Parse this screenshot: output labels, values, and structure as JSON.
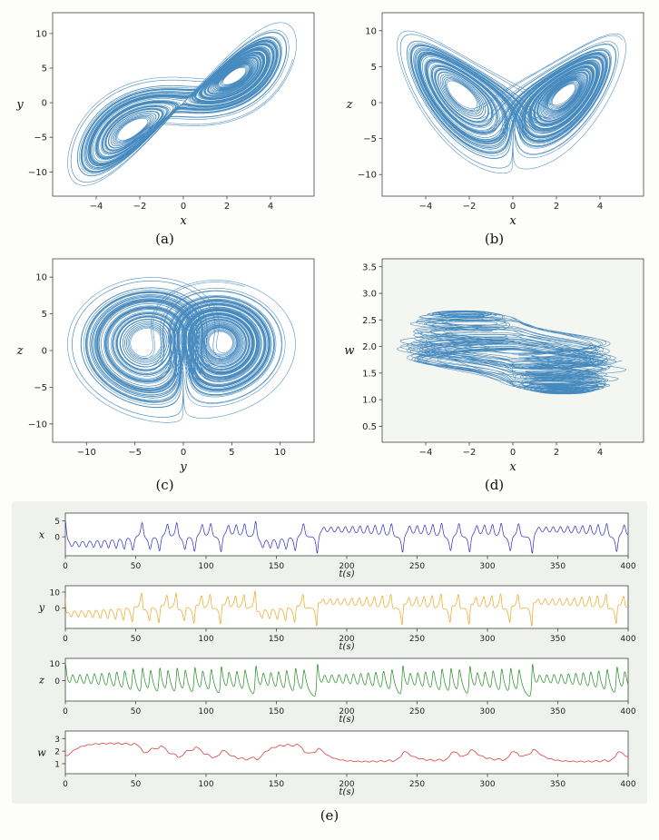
{
  "chart_data": {
    "type": "line",
    "description_kind": "phase-portraits-and-time-series",
    "line_color": "#2e7ab5",
    "panels": [
      {
        "id": "a",
        "kind": "phase",
        "xvar": "x",
        "yvar": "y",
        "xlabel": "x",
        "ylabel": "y",
        "xlim": [
          -6,
          6
        ],
        "ylim": [
          -13.5,
          13
        ],
        "xticks": [
          -4,
          -2,
          0,
          2,
          4
        ],
        "yticks": [
          -10,
          -5,
          0,
          5,
          10
        ],
        "caption": "(a)",
        "bg": "#ffffff"
      },
      {
        "id": "b",
        "kind": "phase",
        "xvar": "x",
        "yvar": "z",
        "xlabel": "x",
        "ylabel": "z",
        "xlim": [
          -6,
          6
        ],
        "ylim": [
          -13,
          12.5
        ],
        "xticks": [
          -4,
          -2,
          0,
          2,
          4
        ],
        "yticks": [
          -10,
          -5,
          0,
          5,
          10
        ],
        "caption": "(b)",
        "bg": "#ffffff"
      },
      {
        "id": "c",
        "kind": "phase",
        "xvar": "y",
        "yvar": "z",
        "xlabel": "y",
        "ylabel": "z",
        "xlim": [
          -13.5,
          13.5
        ],
        "ylim": [
          -12.5,
          12.5
        ],
        "xticks": [
          -10,
          -5,
          0,
          5,
          10
        ],
        "yticks": [
          -10,
          -5,
          0,
          5,
          10
        ],
        "caption": "(c)",
        "bg": "#ffffff"
      },
      {
        "id": "d",
        "kind": "phase",
        "xvar": "x",
        "yvar": "w",
        "xlabel": "x",
        "ylabel": "w",
        "xlim": [
          -6,
          6
        ],
        "ylim": [
          0.2,
          3.65
        ],
        "xticks": [
          -4,
          -2,
          0,
          2,
          4
        ],
        "yticks": [
          0.5,
          1.0,
          1.5,
          2.0,
          2.5,
          3.0,
          3.5
        ],
        "ytick_decimals": 1,
        "caption": "(d)",
        "bg": "#f4f6f2"
      },
      {
        "id": "e",
        "kind": "time",
        "caption": "(e)",
        "xlabel": "t(s)",
        "xlim": [
          0,
          400
        ],
        "xticks": [
          0,
          50,
          100,
          150,
          200,
          250,
          300,
          350,
          400
        ],
        "rows": [
          {
            "var": "x",
            "color": "#2a2ac8",
            "ylim": [
              -6,
              7.5
            ],
            "yticks": [
              0,
              5
            ]
          },
          {
            "var": "y",
            "color": "#eca51e",
            "ylim": [
              -13,
              14
            ],
            "yticks": [
              0,
              10
            ]
          },
          {
            "var": "z",
            "color": "#1f8b1f",
            "ylim": [
              -12,
              13
            ],
            "yticks": [
              0,
              10
            ]
          },
          {
            "var": "w",
            "color": "#d92525",
            "ylim": [
              0.2,
              3.6
            ],
            "yticks": [
              1,
              2,
              3
            ]
          }
        ]
      }
    ],
    "generator": {
      "model": "lorenz-4d-chaotic",
      "sigma": 10,
      "rho": 28,
      "beta": 2.66667,
      "dt": 0.004,
      "steps": 32000,
      "skip": 600,
      "x0": 1.1,
      "y0": 0.9,
      "z0": 20,
      "w0": 2.0,
      "sx": 3.6,
      "sy": 2.2,
      "zc": 24.5,
      "sz": 2.25,
      "wk": 1.0,
      "wc": 1.9,
      "wa": 0.34,
      "tscale": 8
    }
  }
}
